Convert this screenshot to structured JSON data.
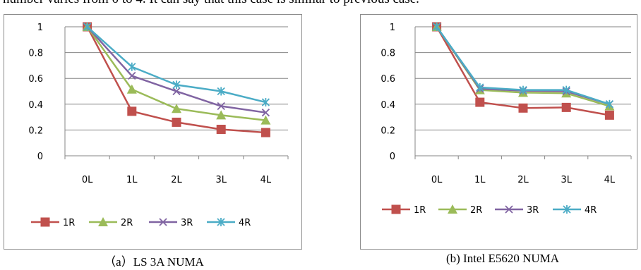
{
  "top_text": "number varies from 0 to 4. It can say that this case is similar to previous case.",
  "captions": [
    "（a）LS 3A NUMA",
    "(b)  Intel E5620 NUMA"
  ],
  "chart_data": [
    {
      "type": "line",
      "categories": [
        "0L",
        "1L",
        "2L",
        "3L",
        "4L"
      ],
      "ylim": [
        0,
        1
      ],
      "yticks": [
        "0",
        "0.2",
        "0.4",
        "0.6",
        "0.8",
        "1"
      ],
      "grid": true,
      "legend_position": "bottom",
      "series": [
        {
          "name": "1R",
          "color": "#c0504d",
          "marker": "square",
          "values": [
            1,
            0.345,
            0.26,
            0.205,
            0.18
          ]
        },
        {
          "name": "2R",
          "color": "#9bbb59",
          "marker": "triangle",
          "values": [
            1,
            0.515,
            0.365,
            0.315,
            0.275
          ]
        },
        {
          "name": "3R",
          "color": "#8064a2",
          "marker": "x",
          "values": [
            1,
            0.62,
            0.5,
            0.385,
            0.335
          ]
        },
        {
          "name": "4R",
          "color": "#4bacc6",
          "marker": "star",
          "values": [
            1,
            0.69,
            0.55,
            0.5,
            0.415
          ]
        }
      ]
    },
    {
      "type": "line",
      "categories": [
        "0L",
        "1L",
        "2L",
        "3L",
        "4L"
      ],
      "ylim": [
        0,
        1
      ],
      "yticks": [
        "0",
        "0.2",
        "0.4",
        "0.6",
        "0.8",
        "1"
      ],
      "grid": true,
      "legend_position": "bottom",
      "series": [
        {
          "name": "1R",
          "color": "#c0504d",
          "marker": "square",
          "values": [
            1,
            0.415,
            0.37,
            0.375,
            0.315
          ]
        },
        {
          "name": "2R",
          "color": "#9bbb59",
          "marker": "triangle",
          "values": [
            1,
            0.51,
            0.49,
            0.485,
            0.385
          ]
        },
        {
          "name": "3R",
          "color": "#8064a2",
          "marker": "x",
          "values": [
            1,
            0.52,
            0.505,
            0.5,
            0.4
          ]
        },
        {
          "name": "4R",
          "color": "#4bacc6",
          "marker": "star",
          "values": [
            1,
            0.53,
            0.51,
            0.51,
            0.4
          ]
        }
      ]
    }
  ]
}
